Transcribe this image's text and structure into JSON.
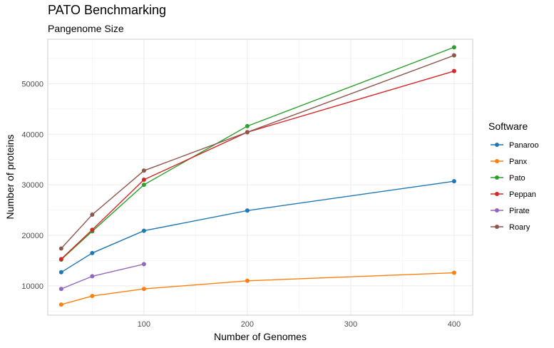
{
  "chart_data": {
    "type": "line",
    "title": "PATO Benchmarking",
    "subtitle": "Pangenome Size",
    "xlabel": "Number of Genomes",
    "ylabel": "Number of proteins",
    "xlim": [
      7,
      418
    ],
    "ylim": [
      4200,
      58800
    ],
    "x_ticks": [
      100,
      200,
      300,
      400
    ],
    "y_ticks": [
      10000,
      20000,
      30000,
      40000,
      50000
    ],
    "x_tick_labels": [
      "100",
      "200",
      "300",
      "400"
    ],
    "y_tick_labels": [
      "10000",
      "20000",
      "30000",
      "40000",
      "50000"
    ],
    "grid": true,
    "legend": {
      "title": "Software",
      "position": "right"
    },
    "series": [
      {
        "name": "Panaroo",
        "color": "#1f77b4",
        "x": [
          20,
          50,
          100,
          200,
          400
        ],
        "y": [
          12700,
          16500,
          20900,
          24900,
          30700
        ]
      },
      {
        "name": "Panx",
        "color": "#ff7f0e",
        "x": [
          20,
          50,
          100,
          200,
          400
        ],
        "y": [
          6300,
          8000,
          9400,
          11000,
          12600
        ]
      },
      {
        "name": "Pato",
        "color": "#2ca02c",
        "x": [
          20,
          50,
          100,
          200,
          400
        ],
        "y": [
          15200,
          20800,
          30000,
          41600,
          57200
        ]
      },
      {
        "name": "Peppan",
        "color": "#d62728",
        "x": [
          20,
          50,
          100,
          200,
          400
        ],
        "y": [
          15300,
          21100,
          31000,
          40400,
          52500
        ]
      },
      {
        "name": "Pirate",
        "color": "#9467bd",
        "x": [
          20,
          50,
          100
        ],
        "y": [
          9400,
          11900,
          14300
        ]
      },
      {
        "name": "Roary",
        "color": "#8c564b",
        "x": [
          20,
          50,
          100,
          200,
          400
        ],
        "y": [
          17400,
          24100,
          32800,
          40400,
          55600
        ]
      }
    ]
  }
}
